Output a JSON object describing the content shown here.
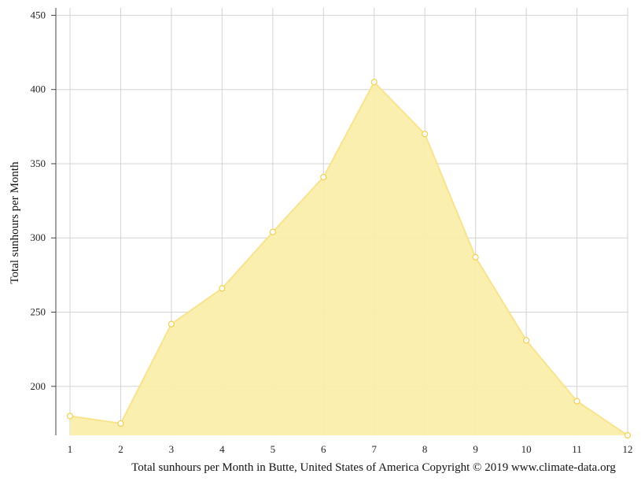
{
  "chart_data": {
    "type": "area",
    "title": "",
    "xlabel": "Total sunhours per Month in Butte, United States of America Copyright © 2019 www.climate-data.org",
    "ylabel": "Total sunhours per Month",
    "categories": [
      "1",
      "2",
      "3",
      "4",
      "5",
      "6",
      "7",
      "8",
      "9",
      "10",
      "11",
      "12"
    ],
    "series": [
      {
        "values": [
          180,
          175,
          242,
          266,
          304,
          341,
          405,
          370,
          287,
          231,
          190,
          167
        ]
      }
    ],
    "ylim": [
      167,
      455
    ],
    "yticks": [
      200,
      250,
      300,
      350,
      400,
      450
    ],
    "grid": true,
    "legend": "none",
    "colors": {
      "fill": "#faeeaa",
      "line": "#f8e38e",
      "marker_stroke": "#f2cf4a",
      "grid": "#d3d3d3",
      "axis": "#444444"
    }
  }
}
